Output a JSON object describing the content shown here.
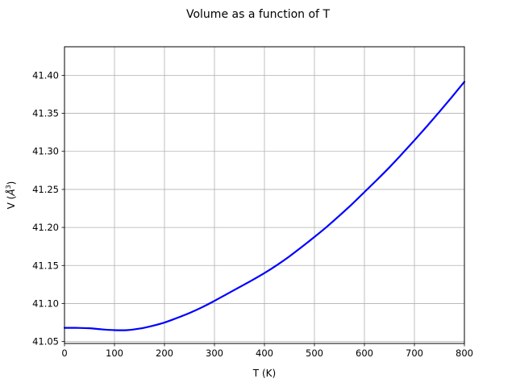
{
  "chart_data": {
    "type": "line",
    "title": "Volume as a function of T",
    "xlabel": "T (K)",
    "ylabel_main": "V (",
    "ylabel_unit": "Å",
    "ylabel_exp": "3",
    "ylabel_close": ")",
    "xlim": [
      0,
      800
    ],
    "ylim": [
      41.0475,
      41.4375
    ],
    "grid": true,
    "x_ticks": [
      0,
      100,
      200,
      300,
      400,
      500,
      600,
      700,
      800
    ],
    "x_tick_labels": [
      "0",
      "100",
      "200",
      "300",
      "400",
      "500",
      "600",
      "700",
      "800"
    ],
    "y_ticks": [
      41.05,
      41.1,
      41.15,
      41.2,
      41.25,
      41.3,
      41.35,
      41.4
    ],
    "y_tick_labels": [
      "41.05",
      "41.10",
      "41.15",
      "41.20",
      "41.25",
      "41.30",
      "41.35",
      "41.40"
    ],
    "series": [
      {
        "color": "#0000ff",
        "x": [
          0,
          25,
          50,
          75,
          100,
          125,
          150,
          175,
          200,
          225,
          250,
          275,
          300,
          325,
          350,
          375,
          400,
          425,
          450,
          475,
          500,
          525,
          550,
          575,
          600,
          625,
          650,
          675,
          700,
          725,
          750,
          775,
          800
        ],
        "y": [
          41.068,
          41.068,
          41.0675,
          41.066,
          41.065,
          41.065,
          41.067,
          41.0705,
          41.075,
          41.081,
          41.0875,
          41.095,
          41.1035,
          41.1125,
          41.1215,
          41.1305,
          41.14,
          41.1505,
          41.162,
          41.1745,
          41.1875,
          41.201,
          41.2155,
          41.2305,
          41.2465,
          41.2625,
          41.279,
          41.2965,
          41.3145,
          41.333,
          41.352,
          41.3715,
          41.3915
        ]
      }
    ]
  }
}
